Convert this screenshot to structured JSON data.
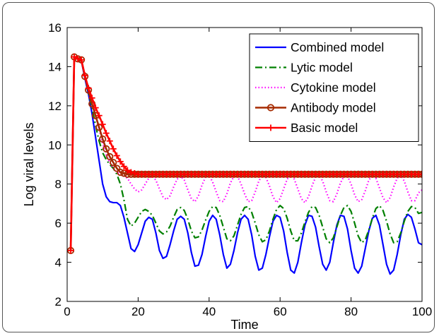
{
  "chart_data": {
    "type": "line",
    "xlabel": "Time",
    "ylabel": "Log viral levels",
    "xlim": [
      0,
      100
    ],
    "ylim": [
      2,
      16
    ],
    "xticks": [
      "0",
      "20",
      "40",
      "60",
      "80",
      "100"
    ],
    "yticks": [
      "2",
      "4",
      "6",
      "8",
      "10",
      "12",
      "14",
      "16"
    ],
    "legend_position": "top-right",
    "series": [
      {
        "name": "Combined model",
        "color": "#0000ff",
        "style": "solid",
        "x": [
          1,
          2,
          3,
          4,
          5,
          6,
          7,
          8,
          9,
          10,
          11,
          12,
          13,
          14,
          15,
          16,
          17,
          18,
          19,
          20,
          21,
          22,
          23,
          24,
          25,
          26,
          27,
          28,
          29,
          30,
          31,
          32,
          33,
          34,
          35,
          36,
          37,
          38,
          39,
          40,
          41,
          42,
          43,
          44,
          45,
          46,
          47,
          48,
          49,
          50,
          51,
          52,
          53,
          54,
          55,
          56,
          57,
          58,
          59,
          60,
          61,
          62,
          63,
          64,
          65,
          66,
          67,
          68,
          69,
          70,
          71,
          72,
          73,
          74,
          75,
          76,
          77,
          78,
          79,
          80,
          81,
          82,
          83,
          84,
          85,
          86,
          87,
          88,
          89,
          90,
          91,
          92,
          93,
          94,
          95,
          96,
          97,
          98,
          99,
          100
        ],
        "y": [
          4.6,
          14.5,
          14.4,
          14.3,
          13.4,
          12.6,
          11.6,
          10.4,
          9.2,
          8.0,
          7.35,
          7.1,
          7.05,
          7.05,
          6.9,
          6.3,
          5.5,
          4.7,
          4.55,
          4.9,
          5.5,
          6.1,
          6.3,
          6.2,
          5.5,
          4.6,
          4.2,
          4.3,
          4.9,
          5.6,
          6.2,
          6.35,
          6.2,
          5.5,
          4.5,
          3.8,
          3.85,
          4.4,
          5.3,
          6.1,
          6.4,
          6.2,
          5.4,
          4.4,
          3.7,
          3.9,
          4.6,
          5.5,
          6.2,
          6.4,
          6.2,
          5.4,
          4.3,
          3.6,
          3.7,
          4.4,
          5.3,
          6.1,
          6.4,
          6.3,
          5.6,
          4.5,
          3.6,
          3.45,
          4.0,
          5.0,
          5.9,
          6.4,
          6.35,
          5.8,
          4.8,
          3.9,
          3.6,
          4.0,
          5.0,
          5.9,
          6.4,
          6.35,
          5.7,
          4.6,
          3.7,
          3.45,
          3.8,
          4.7,
          5.6,
          6.25,
          6.4,
          5.9,
          4.9,
          3.9,
          3.4,
          3.6,
          4.4,
          5.4,
          6.2,
          6.45,
          6.3,
          5.7,
          5.0,
          4.9
        ]
      },
      {
        "name": "Lytic model",
        "color": "#008000",
        "style": "dashdot",
        "x": [
          1,
          2,
          3,
          4,
          5,
          6,
          7,
          8,
          9,
          10,
          11,
          12,
          13,
          14,
          15,
          16,
          17,
          18,
          19,
          20,
          21,
          22,
          23,
          24,
          25,
          26,
          27,
          28,
          29,
          30,
          31,
          32,
          33,
          34,
          35,
          36,
          37,
          38,
          39,
          40,
          41,
          42,
          43,
          44,
          45,
          46,
          47,
          48,
          49,
          50,
          51,
          52,
          53,
          54,
          55,
          56,
          57,
          58,
          59,
          60,
          61,
          62,
          63,
          64,
          65,
          66,
          67,
          68,
          69,
          70,
          71,
          72,
          73,
          74,
          75,
          76,
          77,
          78,
          79,
          80,
          81,
          82,
          83,
          84,
          85,
          86,
          87,
          88,
          89,
          90,
          91,
          92,
          93,
          94,
          95,
          96,
          97,
          98,
          99,
          100
        ],
        "y": [
          4.6,
          14.5,
          14.4,
          14.3,
          13.5,
          12.7,
          11.9,
          11.0,
          10.2,
          9.6,
          9.25,
          9.0,
          8.8,
          8.5,
          8.0,
          7.2,
          6.2,
          5.85,
          6.0,
          6.3,
          6.6,
          6.7,
          6.6,
          6.4,
          6.0,
          5.6,
          5.45,
          5.55,
          5.85,
          6.3,
          6.7,
          6.8,
          6.65,
          6.2,
          5.6,
          5.25,
          5.3,
          5.65,
          6.15,
          6.6,
          6.85,
          6.8,
          6.4,
          5.8,
          5.2,
          5.1,
          5.35,
          5.9,
          6.45,
          6.8,
          6.85,
          6.55,
          6.0,
          5.4,
          5.05,
          5.15,
          5.6,
          6.2,
          6.7,
          6.9,
          6.75,
          6.25,
          5.6,
          5.1,
          5.1,
          5.5,
          6.05,
          6.55,
          6.85,
          6.8,
          6.4,
          5.8,
          5.2,
          5.0,
          5.25,
          5.8,
          6.4,
          6.8,
          6.9,
          6.6,
          6.0,
          5.35,
          5.0,
          5.15,
          5.65,
          6.25,
          6.75,
          6.9,
          6.65,
          6.1,
          5.45,
          5.0,
          5.05,
          5.5,
          6.1,
          6.6,
          6.85,
          6.8,
          6.5,
          6.55
        ]
      },
      {
        "name": "Cytokine model",
        "color": "#ff00ff",
        "style": "dotted",
        "x": [
          1,
          2,
          3,
          4,
          5,
          6,
          7,
          8,
          9,
          10,
          11,
          12,
          13,
          14,
          15,
          16,
          17,
          18,
          19,
          20,
          21,
          22,
          23,
          24,
          25,
          26,
          27,
          28,
          29,
          30,
          31,
          32,
          33,
          34,
          35,
          36,
          37,
          38,
          39,
          40,
          41,
          42,
          43,
          44,
          45,
          46,
          47,
          48,
          49,
          50,
          51,
          52,
          53,
          54,
          55,
          56,
          57,
          58,
          59,
          60,
          61,
          62,
          63,
          64,
          65,
          66,
          67,
          68,
          69,
          70,
          71,
          72,
          73,
          74,
          75,
          76,
          77,
          78,
          79,
          80,
          81,
          82,
          83,
          84,
          85,
          86,
          87,
          88,
          89,
          90,
          91,
          92,
          93,
          94,
          95,
          96,
          97,
          98,
          99,
          100
        ],
        "y": [
          4.6,
          14.5,
          14.4,
          14.3,
          13.5,
          12.9,
          12.2,
          11.5,
          10.8,
          10.1,
          9.5,
          9.1,
          8.8,
          8.6,
          8.5,
          8.4,
          8.3,
          8.0,
          7.75,
          7.6,
          7.7,
          8.0,
          8.3,
          8.4,
          8.2,
          7.75,
          7.35,
          7.2,
          7.4,
          7.85,
          8.25,
          8.4,
          8.2,
          7.7,
          7.25,
          7.1,
          7.4,
          7.95,
          8.35,
          8.45,
          8.1,
          7.6,
          7.15,
          7.1,
          7.5,
          8.05,
          8.4,
          8.4,
          8.0,
          7.5,
          7.1,
          7.15,
          7.6,
          8.15,
          8.45,
          8.35,
          7.9,
          7.35,
          7.05,
          7.25,
          7.75,
          8.25,
          8.45,
          8.25,
          7.75,
          7.25,
          7.05,
          7.35,
          7.9,
          8.35,
          8.45,
          8.15,
          7.6,
          7.15,
          7.1,
          7.5,
          8.05,
          8.4,
          8.4,
          8.0,
          7.45,
          7.1,
          7.2,
          7.65,
          8.2,
          8.45,
          8.3,
          7.8,
          7.3,
          7.05,
          7.3,
          7.85,
          8.3,
          8.45,
          8.15,
          7.6,
          7.15,
          7.15,
          7.55,
          7.7
        ]
      },
      {
        "name": "Antibody model",
        "color": "#a52a00",
        "style": "solid-circle",
        "x": [
          1,
          2,
          3,
          4,
          5,
          6,
          7,
          8,
          9,
          10,
          11,
          12,
          13,
          14,
          15,
          16,
          17,
          18,
          19,
          20,
          21,
          22,
          23,
          24,
          25,
          26,
          27,
          28,
          29,
          30,
          31,
          32,
          33,
          34,
          35,
          36,
          37,
          38,
          39,
          40,
          41,
          42,
          43,
          44,
          45,
          46,
          47,
          48,
          49,
          50,
          51,
          52,
          53,
          54,
          55,
          56,
          57,
          58,
          59,
          60,
          61,
          62,
          63,
          64,
          65,
          66,
          67,
          68,
          69,
          70,
          71,
          72,
          73,
          74,
          75,
          76,
          77,
          78,
          79,
          80,
          81,
          82,
          83,
          84,
          85,
          86,
          87,
          88,
          89,
          90,
          91,
          92,
          93,
          94,
          95,
          96,
          97,
          98,
          99,
          100
        ],
        "y": [
          4.6,
          14.5,
          14.4,
          14.35,
          13.5,
          12.8,
          12.1,
          11.5,
          10.9,
          10.3,
          9.8,
          9.4,
          9.1,
          8.8,
          8.6,
          8.55,
          8.5,
          8.5,
          8.5,
          8.5,
          8.5,
          8.5,
          8.5,
          8.5,
          8.5,
          8.5,
          8.5,
          8.5,
          8.5,
          8.5,
          8.5,
          8.5,
          8.5,
          8.5,
          8.5,
          8.5,
          8.5,
          8.5,
          8.5,
          8.5,
          8.5,
          8.5,
          8.5,
          8.5,
          8.5,
          8.5,
          8.5,
          8.5,
          8.5,
          8.5,
          8.5,
          8.5,
          8.5,
          8.5,
          8.5,
          8.5,
          8.5,
          8.5,
          8.5,
          8.5,
          8.5,
          8.5,
          8.5,
          8.5,
          8.5,
          8.5,
          8.5,
          8.5,
          8.5,
          8.5,
          8.5,
          8.5,
          8.5,
          8.5,
          8.5,
          8.5,
          8.5,
          8.5,
          8.5,
          8.5,
          8.5,
          8.5,
          8.5,
          8.5,
          8.5,
          8.5,
          8.5,
          8.5,
          8.5,
          8.5,
          8.5,
          8.5,
          8.5,
          8.5,
          8.5,
          8.5,
          8.5,
          8.5,
          8.5,
          8.5
        ]
      },
      {
        "name": "Basic model",
        "color": "#ff0000",
        "style": "solid-plus",
        "x": [
          1,
          2,
          3,
          4,
          5,
          6,
          7,
          8,
          9,
          10,
          11,
          12,
          13,
          14,
          15,
          16,
          17,
          18,
          19,
          20,
          21,
          22,
          23,
          24,
          25,
          26,
          27,
          28,
          29,
          30,
          31,
          32,
          33,
          34,
          35,
          36,
          37,
          38,
          39,
          40,
          41,
          42,
          43,
          44,
          45,
          46,
          47,
          48,
          49,
          50,
          51,
          52,
          53,
          54,
          55,
          56,
          57,
          58,
          59,
          60,
          61,
          62,
          63,
          64,
          65,
          66,
          67,
          68,
          69,
          70,
          71,
          72,
          73,
          74,
          75,
          76,
          77,
          78,
          79,
          80,
          81,
          82,
          83,
          84,
          85,
          86,
          87,
          88,
          89,
          90,
          91,
          92,
          93,
          94,
          95,
          96,
          97,
          98,
          99,
          100
        ],
        "y": [
          4.6,
          14.5,
          14.4,
          14.35,
          13.55,
          12.9,
          12.4,
          11.9,
          11.5,
          11.05,
          10.6,
          10.2,
          9.8,
          9.45,
          9.15,
          8.9,
          8.7,
          8.6,
          8.55,
          8.5,
          8.5,
          8.5,
          8.5,
          8.5,
          8.5,
          8.5,
          8.5,
          8.5,
          8.5,
          8.5,
          8.5,
          8.5,
          8.5,
          8.5,
          8.5,
          8.5,
          8.5,
          8.5,
          8.5,
          8.5,
          8.5,
          8.5,
          8.5,
          8.5,
          8.5,
          8.5,
          8.5,
          8.5,
          8.5,
          8.5,
          8.5,
          8.5,
          8.5,
          8.5,
          8.5,
          8.5,
          8.5,
          8.5,
          8.5,
          8.5,
          8.5,
          8.5,
          8.5,
          8.5,
          8.5,
          8.5,
          8.5,
          8.5,
          8.5,
          8.5,
          8.5,
          8.5,
          8.5,
          8.5,
          8.5,
          8.5,
          8.5,
          8.5,
          8.5,
          8.5,
          8.5,
          8.5,
          8.5,
          8.5,
          8.5,
          8.5,
          8.5,
          8.5,
          8.5,
          8.5,
          8.5,
          8.5,
          8.5,
          8.5,
          8.5,
          8.5,
          8.5,
          8.5,
          8.5,
          8.5
        ]
      }
    ]
  }
}
